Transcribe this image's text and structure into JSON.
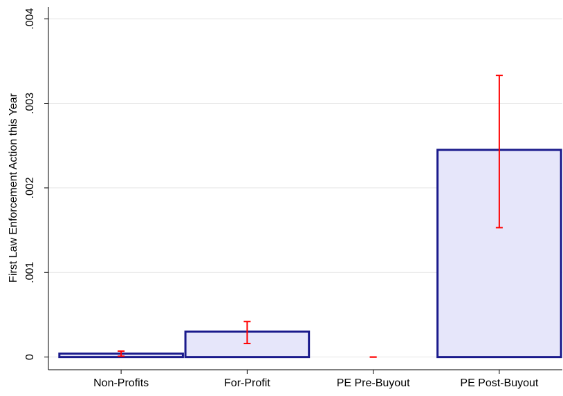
{
  "chart_data": {
    "type": "bar",
    "y_label": "First Law Enforcement Action this Year",
    "categories": [
      "Non-Profits",
      "For-Profit",
      "PE Pre-Buyout",
      "PE Post-Buyout"
    ],
    "values": [
      4e-05,
      0.0003,
      0,
      0.00245
    ],
    "error_low": [
      1e-05,
      0.00016,
      0,
      0.00153
    ],
    "error_high": [
      7e-05,
      0.00042,
      0,
      0.00333
    ],
    "color": "#e6e6fa",
    "edge_color": "#1a1a8c",
    "error_color": "#ff0000",
    "ylim": [
      -0.00015,
      0.00414
    ],
    "yticks": [
      0,
      {
        "value": 0.001,
        "label": ".001"
      },
      {
        "value": 0.002,
        "label": ".002"
      },
      {
        "value": 0.003,
        "label": ".003"
      },
      {
        "value": 0.004,
        "label": ".004"
      }
    ],
    "grid": true
  }
}
